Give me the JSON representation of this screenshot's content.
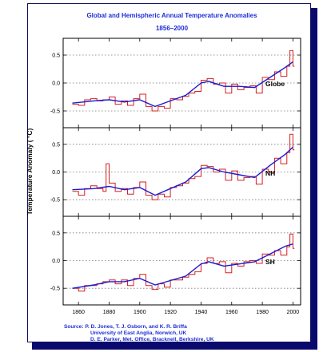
{
  "chart_data": {
    "type": "line",
    "title": "Global and Hemispheric Annual Temperature Anomalies",
    "subtitle": "1856–2000",
    "ylabel": "Temperature Anomaly ( °C)",
    "xlabel": "",
    "xlim": [
      1850,
      2005
    ],
    "x_ticks": [
      "1860",
      "1880",
      "1900",
      "1920",
      "1940",
      "1960",
      "1980",
      "2000"
    ],
    "grid": "dotted at 0.5 intervals",
    "colors": {
      "annual": "#d42020",
      "smoothed": "#1a1ad4",
      "text_blue": "#1f2dd6"
    },
    "source_lines": [
      "Source:  P. D. Jones, T. J. Osborn, and K. R. Briffa",
      "University of East Anglia, Norwich, UK",
      "D. E. Parker, Met. Office, Bracknell, Berkshire, UK"
    ],
    "panels": [
      {
        "label": "Globe",
        "ylim": [
          -0.8,
          0.8
        ],
        "y_ticks": [
          "0.5",
          "0.0",
          "-0.5"
        ],
        "series": [
          {
            "label": "annual",
            "x": [
              1856,
              1860,
              1864,
              1868,
              1872,
              1876,
              1880,
              1884,
              1888,
              1892,
              1896,
              1900,
              1904,
              1908,
              1912,
              1916,
              1920,
              1924,
              1928,
              1932,
              1936,
              1940,
              1944,
              1948,
              1952,
              1956,
              1960,
              1964,
              1968,
              1972,
              1976,
              1980,
              1984,
              1988,
              1992,
              1996,
              1998,
              2000
            ],
            "y": [
              -0.38,
              -0.4,
              -0.3,
              -0.28,
              -0.32,
              -0.3,
              -0.25,
              -0.38,
              -0.32,
              -0.4,
              -0.28,
              -0.2,
              -0.42,
              -0.5,
              -0.42,
              -0.45,
              -0.28,
              -0.3,
              -0.24,
              -0.18,
              -0.15,
              0.05,
              0.08,
              -0.02,
              0.0,
              -0.18,
              -0.02,
              -0.12,
              -0.08,
              -0.05,
              -0.18,
              0.1,
              0.06,
              0.2,
              0.12,
              0.3,
              0.58,
              0.3
            ]
          },
          {
            "label": "smoothed",
            "x": [
              1856,
              1870,
              1880,
              1890,
              1900,
              1910,
              1920,
              1930,
              1940,
              1945,
              1955,
              1965,
              1975,
              1985,
              1995,
              2000
            ],
            "y": [
              -0.36,
              -0.32,
              -0.3,
              -0.34,
              -0.3,
              -0.42,
              -0.32,
              -0.22,
              0.0,
              0.03,
              -0.06,
              -0.06,
              -0.08,
              0.1,
              0.28,
              0.38
            ]
          }
        ]
      },
      {
        "label": "NH",
        "ylim": [
          -0.8,
          0.8
        ],
        "y_ticks": [
          "0.5",
          "0.0",
          "-0.5"
        ],
        "series": [
          {
            "label": "annual",
            "x": [
              1856,
              1860,
              1864,
              1868,
              1872,
              1876,
              1878,
              1880,
              1884,
              1888,
              1892,
              1896,
              1900,
              1904,
              1908,
              1912,
              1916,
              1920,
              1924,
              1928,
              1932,
              1936,
              1940,
              1944,
              1948,
              1952,
              1956,
              1960,
              1964,
              1968,
              1972,
              1976,
              1980,
              1984,
              1988,
              1992,
              1996,
              1998,
              2000
            ],
            "y": [
              -0.35,
              -0.42,
              -0.3,
              -0.25,
              -0.3,
              -0.35,
              0.15,
              -0.2,
              -0.35,
              -0.3,
              -0.4,
              -0.28,
              -0.18,
              -0.42,
              -0.5,
              -0.4,
              -0.45,
              -0.28,
              -0.25,
              -0.2,
              -0.12,
              -0.08,
              0.12,
              0.1,
              0.0,
              0.05,
              -0.15,
              0.02,
              -0.15,
              -0.1,
              -0.08,
              -0.22,
              0.05,
              0.0,
              0.25,
              0.15,
              0.35,
              0.68,
              0.4
            ]
          },
          {
            "label": "smoothed",
            "x": [
              1856,
              1870,
              1880,
              1890,
              1900,
              1910,
              1920,
              1930,
              1940,
              1945,
              1955,
              1965,
              1975,
              1985,
              1995,
              2000
            ],
            "y": [
              -0.32,
              -0.3,
              -0.26,
              -0.32,
              -0.28,
              -0.42,
              -0.3,
              -0.18,
              0.06,
              0.08,
              0.0,
              -0.05,
              -0.1,
              0.12,
              0.32,
              0.45
            ]
          }
        ]
      },
      {
        "label": "SH",
        "ylim": [
          -0.8,
          0.8
        ],
        "y_ticks": [
          "0.5",
          "0.0",
          "-0.5"
        ],
        "series": [
          {
            "label": "annual",
            "x": [
              1856,
              1860,
              1864,
              1868,
              1872,
              1876,
              1880,
              1884,
              1888,
              1892,
              1896,
              1900,
              1904,
              1908,
              1912,
              1916,
              1920,
              1924,
              1928,
              1932,
              1936,
              1940,
              1944,
              1948,
              1952,
              1956,
              1960,
              1964,
              1968,
              1972,
              1976,
              1980,
              1984,
              1988,
              1992,
              1996,
              1998,
              2000
            ],
            "y": [
              -0.5,
              -0.55,
              -0.45,
              -0.45,
              -0.42,
              -0.38,
              -0.35,
              -0.42,
              -0.35,
              -0.45,
              -0.32,
              -0.25,
              -0.45,
              -0.52,
              -0.42,
              -0.48,
              -0.35,
              -0.35,
              -0.3,
              -0.25,
              -0.2,
              -0.05,
              0.05,
              -0.05,
              -0.02,
              -0.22,
              -0.05,
              -0.1,
              -0.02,
              0.0,
              -0.05,
              0.12,
              0.1,
              0.18,
              0.1,
              0.25,
              0.48,
              0.22
            ]
          },
          {
            "label": "smoothed",
            "x": [
              1856,
              1870,
              1880,
              1890,
              1900,
              1910,
              1920,
              1930,
              1940,
              1945,
              1955,
              1965,
              1975,
              1985,
              1995,
              2000
            ],
            "y": [
              -0.5,
              -0.44,
              -0.38,
              -0.38,
              -0.32,
              -0.44,
              -0.36,
              -0.28,
              -0.06,
              -0.02,
              -0.1,
              -0.06,
              -0.02,
              0.12,
              0.26,
              0.3
            ]
          }
        ]
      }
    ]
  }
}
